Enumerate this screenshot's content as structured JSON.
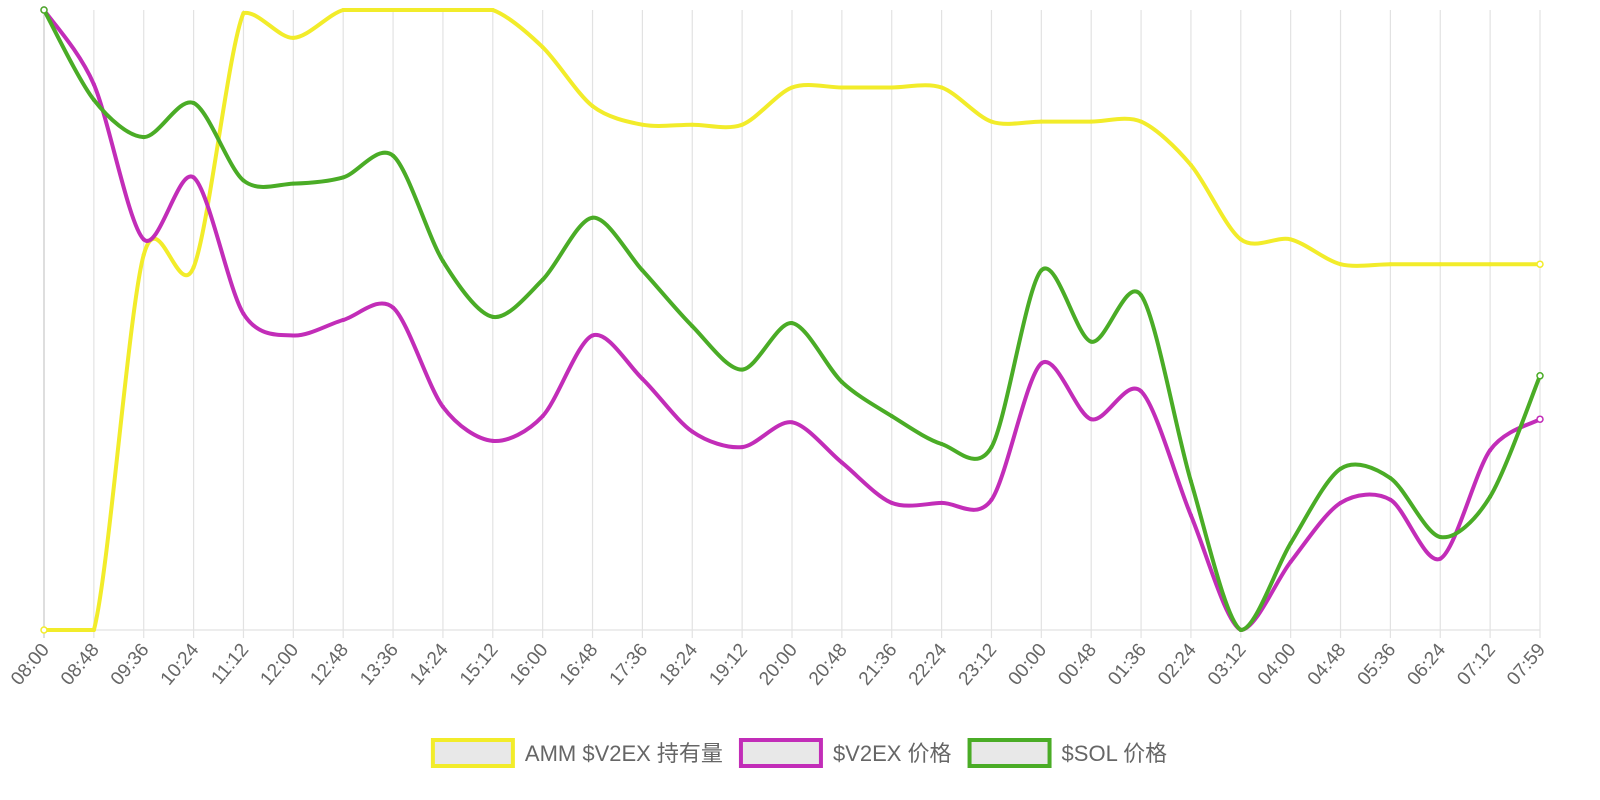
{
  "chart_data": {
    "type": "line",
    "title": "",
    "xlabel": "",
    "ylabel": "",
    "grid": "vertical-only",
    "legend_position": "bottom-center",
    "y_axis_labels_shown": false,
    "ylim": [
      0,
      100
    ],
    "x": [
      "08:00",
      "08:48",
      "09:36",
      "10:24",
      "11:12",
      "12:00",
      "12:48",
      "13:36",
      "14:24",
      "15:12",
      "16:00",
      "16:48",
      "17:36",
      "18:24",
      "19:12",
      "20:00",
      "20:48",
      "21:36",
      "22:24",
      "23:12",
      "00:00",
      "00:48",
      "01:36",
      "02:24",
      "03:12",
      "04:00",
      "04:48",
      "05:36",
      "06:24",
      "07:12",
      "07:59"
    ],
    "series": [
      {
        "name": "AMM $V2EX 持有量",
        "color": "#f2ec2a",
        "values": [
          0,
          0,
          60.5,
          58.5,
          99.5,
          95.5,
          100,
          100,
          100,
          100,
          94,
          84.5,
          81.5,
          81.5,
          81.5,
          87.5,
          87.5,
          87.5,
          87.5,
          82,
          82,
          82,
          82,
          75,
          63,
          63,
          59,
          59,
          59,
          59,
          59
        ]
      },
      {
        "name": "$V2EX 价格",
        "color": "#c22db8",
        "values": [
          100,
          88,
          63,
          73,
          51,
          47.5,
          50,
          52,
          36,
          30.5,
          34.5,
          47.5,
          40.5,
          32,
          29.5,
          33.5,
          27,
          20.5,
          20.5,
          21,
          43,
          34,
          38.5,
          18.5,
          0,
          11,
          20.5,
          21,
          11.5,
          29,
          34
        ]
      },
      {
        "name": "$SOL 价格",
        "color": "#4aac26",
        "values": [
          100,
          85.5,
          79.5,
          85,
          72.5,
          72,
          73,
          76.5,
          59.5,
          50.5,
          56.5,
          66.5,
          58,
          49,
          42,
          49.5,
          40,
          34.5,
          30,
          29.5,
          58,
          46.5,
          54,
          24,
          0,
          14,
          26,
          24.5,
          15,
          21.5,
          41
        ]
      }
    ]
  }
}
